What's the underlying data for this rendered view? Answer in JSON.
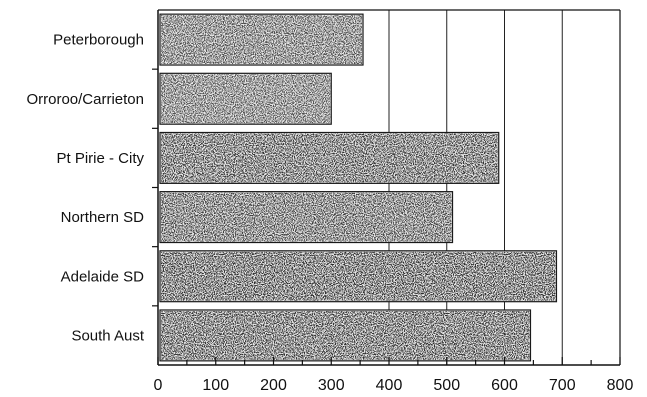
{
  "chart_data": {
    "type": "bar",
    "orientation": "horizontal",
    "categories": [
      "Peterborough",
      "Orroroo/Carrieton",
      "Pt Pirie - City",
      "Northern SD",
      "Adelaide SD",
      "South Aust"
    ],
    "values": [
      355,
      300,
      590,
      510,
      690,
      645
    ],
    "title": "",
    "xlabel": "",
    "ylabel": "",
    "xlim": [
      0,
      800
    ],
    "xticks": [
      "0",
      "100",
      "200",
      "300",
      "400",
      "500",
      "600",
      "700",
      "800"
    ],
    "grid": "vertical lines at 400, 500, 600, 700",
    "legend": "none",
    "colors": {
      "bar_fill": "#e8e8e8",
      "bar_texture": "#2a2a2a",
      "axis": "#111111"
    }
  }
}
